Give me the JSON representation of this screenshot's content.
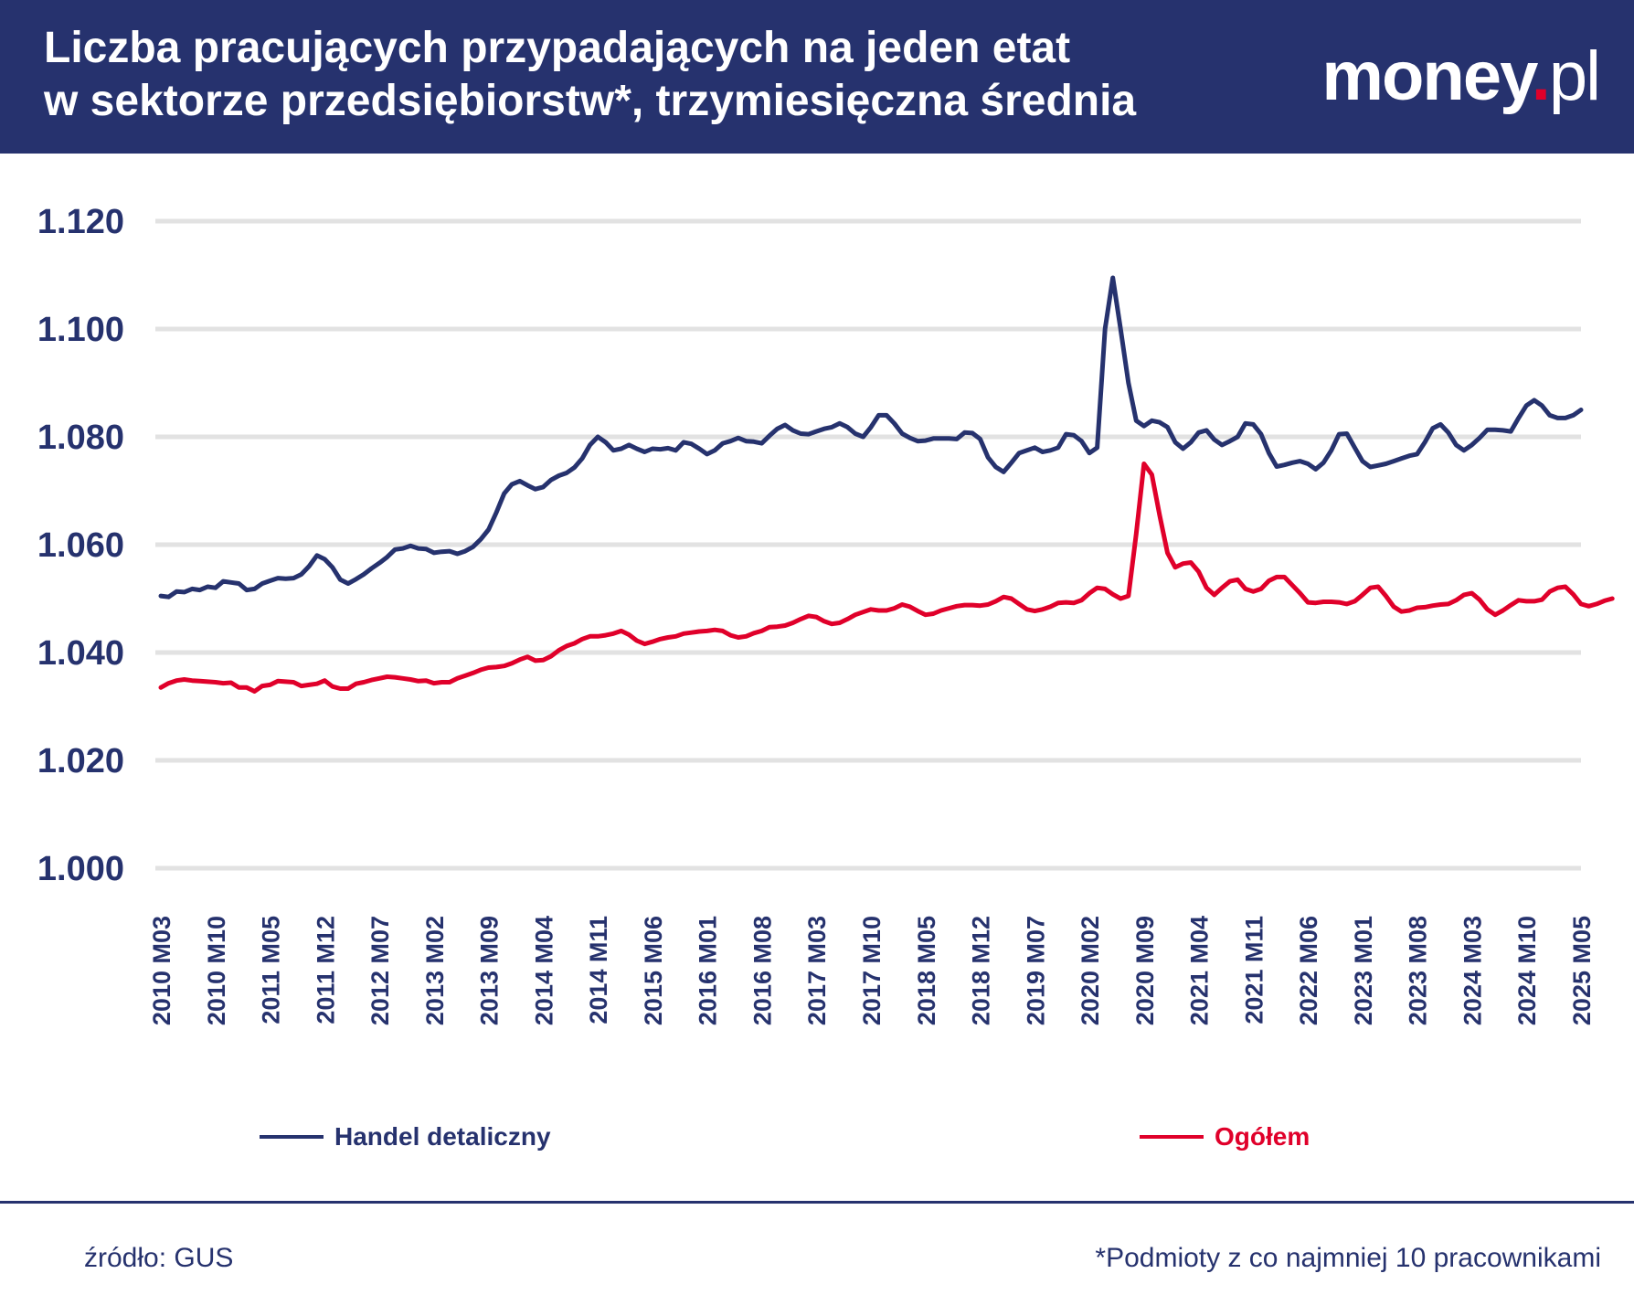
{
  "header": {
    "title_line1": "Liczba pracujących przypadających na jeden etat",
    "title_line2": "w sektorze przedsiębiorstw*, trzymiesięczna średnia",
    "logo_main": "money",
    "logo_dot": ".",
    "logo_tld": "pl"
  },
  "colors": {
    "header_bg": "#26326e",
    "series_retail": "#26326e",
    "series_total": "#e0002a",
    "grid": "#e2e2e2",
    "text": "#26326e"
  },
  "footer": {
    "source": "źródło: GUS",
    "footnote": "*Podmioty z co najmniej 10 pracownikami"
  },
  "chart_data": {
    "type": "line",
    "title": "Liczba pracujących przypadających na jeden etat w sektorze przedsiębiorstw*, trzymiesięczna średnia",
    "xlabel": "",
    "ylabel": "",
    "ylim": [
      1.0,
      1.12
    ],
    "y_ticks": [
      "1.120",
      "1.100",
      "1.080",
      "1.060",
      "1.040",
      "1.020",
      "1.000"
    ],
    "y_tick_values": [
      1.12,
      1.1,
      1.08,
      1.06,
      1.04,
      1.02,
      1.0
    ],
    "x_start": "2010 M03",
    "x_end": "2025 M05",
    "x_ticks": [
      "2010 M03",
      "2010 M10",
      "2011 M05",
      "2011 M12",
      "2012 M07",
      "2013 M02",
      "2013 M09",
      "2014 M04",
      "2014 M11",
      "2015 M06",
      "2016 M01",
      "2016 M08",
      "2017 M03",
      "2017 M10",
      "2018 M05",
      "2018 M12",
      "2019 M07",
      "2020 M02",
      "2020 M09",
      "2021 M04",
      "2021 M11",
      "2022 M06",
      "2023 M01",
      "2023 M08",
      "2024 M03",
      "2024 M10",
      "2025 M05"
    ],
    "grid": true,
    "legend_position": "bottom",
    "series": [
      {
        "name": "Handel detaliczny",
        "color": "#26326e",
        "values": [
          1.0505,
          1.0503,
          1.0513,
          1.0512,
          1.0518,
          1.0516,
          1.0522,
          1.052,
          1.0532,
          1.053,
          1.0528,
          1.0516,
          1.0518,
          1.0528,
          1.0533,
          1.0538,
          1.0537,
          1.0538,
          1.0545,
          1.056,
          1.058,
          1.0573,
          1.0558,
          1.0535,
          1.0528,
          1.0536,
          1.0545,
          1.0556,
          1.0566,
          1.0577,
          1.0591,
          1.0593,
          1.0598,
          1.0593,
          1.0592,
          1.0585,
          1.0587,
          1.0588,
          1.0583,
          1.0588,
          1.0596,
          1.061,
          1.0628,
          1.066,
          1.0695,
          1.0712,
          1.0718,
          1.071,
          1.0703,
          1.0707,
          1.072,
          1.0728,
          1.0733,
          1.0743,
          1.076,
          1.0785,
          1.08,
          1.079,
          1.0775,
          1.0778,
          1.0785,
          1.0778,
          1.0772,
          1.0778,
          1.0777,
          1.0779,
          1.0775,
          1.079,
          1.0787,
          1.0778,
          1.0768,
          1.0775,
          1.0788,
          1.0792,
          1.0798,
          1.0792,
          1.0791,
          1.0788,
          1.0802,
          1.0815,
          1.0822,
          1.0812,
          1.0806,
          1.0805,
          1.081,
          1.0815,
          1.0818,
          1.0825,
          1.0818,
          1.0806,
          1.08,
          1.0818,
          1.084,
          1.084,
          1.0825,
          1.0806,
          1.0798,
          1.0792,
          1.0793,
          1.0797,
          1.0797,
          1.0797,
          1.0796,
          1.0808,
          1.0807,
          1.0796,
          1.0762,
          1.0744,
          1.0735,
          1.0752,
          1.077,
          1.0775,
          1.078,
          1.0772,
          1.0775,
          1.078,
          1.0805,
          1.0803,
          1.0792,
          1.077,
          1.078,
          1.1,
          1.1095,
          1.1,
          1.09,
          1.083,
          1.082,
          1.083,
          1.0827,
          1.0818,
          1.079,
          1.0778,
          1.079,
          1.0808,
          1.0812,
          1.0795,
          1.0785,
          1.0792,
          1.08,
          1.0825,
          1.0823,
          1.0805,
          1.077,
          1.0745,
          1.0748,
          1.0752,
          1.0755,
          1.075,
          1.074,
          1.0752,
          1.0775,
          1.0805,
          1.0806,
          1.078,
          1.0755,
          1.0744,
          1.0747,
          1.075,
          1.0755,
          1.076,
          1.0765,
          1.0768,
          1.079,
          1.0816,
          1.0823,
          1.0808,
          1.0785,
          1.0775,
          1.0785,
          1.0798,
          1.0813,
          1.0813,
          1.0812,
          1.081,
          1.0835,
          1.0858,
          1.0868,
          1.0858,
          1.084,
          1.0835,
          1.0835,
          1.084,
          1.085
        ]
      },
      {
        "name": "Ogółem",
        "color": "#e0002a",
        "values": [
          1.0335,
          1.0343,
          1.0348,
          1.035,
          1.0348,
          1.0347,
          1.0346,
          1.0345,
          1.0343,
          1.0344,
          1.0335,
          1.0335,
          1.0328,
          1.0338,
          1.034,
          1.0347,
          1.0346,
          1.0345,
          1.0338,
          1.034,
          1.0342,
          1.0348,
          1.0337,
          1.0333,
          1.0333,
          1.0342,
          1.0345,
          1.0349,
          1.0352,
          1.0355,
          1.0354,
          1.0352,
          1.035,
          1.0347,
          1.0348,
          1.0343,
          1.0345,
          1.0345,
          1.0352,
          1.0357,
          1.0362,
          1.0368,
          1.0372,
          1.0373,
          1.0375,
          1.038,
          1.0387,
          1.0392,
          1.0385,
          1.0386,
          1.0393,
          1.0404,
          1.0412,
          1.0417,
          1.0425,
          1.043,
          1.043,
          1.0432,
          1.0435,
          1.044,
          1.0433,
          1.0422,
          1.0416,
          1.042,
          1.0425,
          1.0428,
          1.043,
          1.0435,
          1.0437,
          1.0439,
          1.044,
          1.0442,
          1.044,
          1.0432,
          1.0428,
          1.043,
          1.0436,
          1.044,
          1.0447,
          1.0448,
          1.045,
          1.0455,
          1.0462,
          1.0468,
          1.0466,
          1.0458,
          1.0453,
          1.0455,
          1.0462,
          1.047,
          1.0475,
          1.048,
          1.0478,
          1.0478,
          1.0482,
          1.0489,
          1.0485,
          1.0477,
          1.047,
          1.0472,
          1.0478,
          1.0482,
          1.0486,
          1.0488,
          1.0488,
          1.0487,
          1.0489,
          1.0495,
          1.0503,
          1.05,
          1.049,
          1.048,
          1.0477,
          1.048,
          1.0485,
          1.0492,
          1.0493,
          1.0492,
          1.0497,
          1.051,
          1.052,
          1.0518,
          1.0508,
          1.05,
          1.0505,
          1.062,
          1.075,
          1.073,
          1.0655,
          1.0585,
          1.0558,
          1.0565,
          1.0567,
          1.055,
          1.052,
          1.0507,
          1.052,
          1.0532,
          1.0535,
          1.0518,
          1.0513,
          1.0518,
          1.0533,
          1.054,
          1.054,
          1.0525,
          1.051,
          1.0493,
          1.0492,
          1.0494,
          1.0494,
          1.0493,
          1.049,
          1.0495,
          1.0507,
          1.052,
          1.0522,
          1.0505,
          1.0485,
          1.0476,
          1.0478,
          1.0483,
          1.0484,
          1.0487,
          1.0489,
          1.049,
          1.0497,
          1.0507,
          1.051,
          1.0498,
          1.048,
          1.047,
          1.0478,
          1.0488,
          1.0497,
          1.0495,
          1.0495,
          1.0498,
          1.0513,
          1.052,
          1.0522,
          1.0508,
          1.049,
          1.0486,
          1.049,
          1.0496,
          1.05
        ]
      }
    ]
  }
}
